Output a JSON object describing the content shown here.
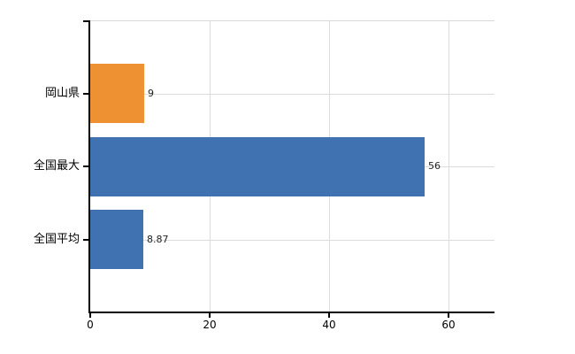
{
  "chart_data": {
    "type": "bar",
    "orientation": "horizontal",
    "title": "",
    "categories": [
      "岡山県",
      "全国最大",
      "全国平均"
    ],
    "values": [
      9,
      56,
      8.87
    ],
    "value_labels": [
      "9",
      "56",
      "8.87"
    ],
    "bar_colors": [
      "#ED9132",
      "#4071B0",
      "#4071B0"
    ],
    "xlim": [
      0,
      67.7
    ],
    "xticks": [
      0,
      20,
      40,
      60
    ],
    "xtick_labels": [
      "0",
      "20",
      "40",
      "60"
    ],
    "grid": true,
    "legend": "none",
    "colors": {
      "axis": "#000000",
      "gridline": "#dcdcdc",
      "plot_border": "#d9d9d9",
      "value_text": "#222222",
      "label_text": "#000000",
      "background": "#ffffff"
    }
  }
}
